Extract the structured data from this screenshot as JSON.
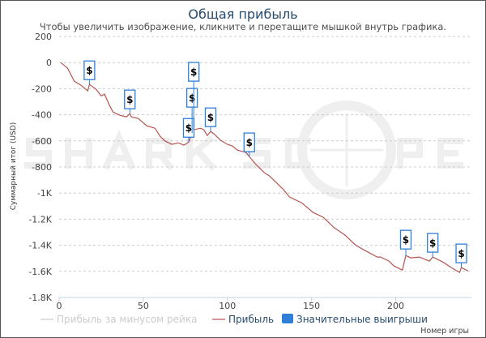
{
  "chart_data": {
    "type": "line",
    "title": "Общая прибыль",
    "subtitle": "Чтобы увеличить изображение, кликните и перетащите мышкой внутрь графика.",
    "xlabel": "Номер игры",
    "ylabel": "Суммарный итог (USD)",
    "xlim": [
      0,
      245
    ],
    "ylim": [
      -1800,
      200
    ],
    "grid": true,
    "x_ticks": [
      {
        "v": 0,
        "label": "0"
      },
      {
        "v": 50,
        "label": "50"
      },
      {
        "v": 100,
        "label": "100"
      },
      {
        "v": 150,
        "label": "150"
      },
      {
        "v": 200,
        "label": "200"
      }
    ],
    "y_ticks": [
      {
        "v": 200,
        "label": "200"
      },
      {
        "v": 0,
        "label": "0"
      },
      {
        "v": -200,
        "label": "-200"
      },
      {
        "v": -400,
        "label": "-400"
      },
      {
        "v": -600,
        "label": "-600"
      },
      {
        "v": -800,
        "label": "-800"
      },
      {
        "v": -1000,
        "label": "-1K"
      },
      {
        "v": -1200,
        "label": "-1.2K"
      },
      {
        "v": -1400,
        "label": "-1.4K"
      },
      {
        "v": -1600,
        "label": "-1.6K"
      },
      {
        "v": -1800,
        "label": "-1.8K"
      }
    ],
    "legend": [
      {
        "name": "Прибыль за минусом рейка",
        "color": "#cccccc",
        "active": false
      },
      {
        "name": "Прибыль",
        "color": "#b85450",
        "active": true
      },
      {
        "name": "Значительные выигрыши",
        "color": "#2f7ed8",
        "active": true
      }
    ],
    "legend_position": "bottom",
    "series": [
      {
        "name": "Прибыль",
        "color": "#b85450",
        "points": [
          [
            1,
            0
          ],
          [
            5,
            -43
          ],
          [
            9,
            -143
          ],
          [
            13,
            -174
          ],
          [
            17,
            -217
          ],
          [
            18,
            -168
          ],
          [
            22,
            -205
          ],
          [
            25,
            -255
          ],
          [
            27,
            -242
          ],
          [
            30,
            -329
          ],
          [
            32,
            -379
          ],
          [
            36,
            -404
          ],
          [
            40,
            -416
          ],
          [
            42,
            -391
          ],
          [
            43,
            -416
          ],
          [
            47,
            -428
          ],
          [
            52,
            -484
          ],
          [
            57,
            -503
          ],
          [
            60,
            -565
          ],
          [
            63,
            -602
          ],
          [
            67,
            -627
          ],
          [
            71,
            -615
          ],
          [
            74,
            -633
          ],
          [
            75,
            -627
          ],
          [
            77,
            -609
          ],
          [
            80,
            -515
          ],
          [
            84,
            -503
          ],
          [
            86,
            -515
          ],
          [
            88,
            -559
          ],
          [
            90,
            -528
          ],
          [
            92,
            -546
          ],
          [
            96,
            -596
          ],
          [
            100,
            -627
          ],
          [
            103,
            -640
          ],
          [
            106,
            -671
          ],
          [
            111,
            -689
          ],
          [
            113,
            -720
          ],
          [
            117,
            -782
          ],
          [
            122,
            -845
          ],
          [
            125,
            -869
          ],
          [
            133,
            -969
          ],
          [
            137,
            -1031
          ],
          [
            144,
            -1074
          ],
          [
            151,
            -1149
          ],
          [
            157,
            -1186
          ],
          [
            163,
            -1261
          ],
          [
            170,
            -1323
          ],
          [
            176,
            -1397
          ],
          [
            181,
            -1435
          ],
          [
            189,
            -1490
          ],
          [
            191,
            -1490
          ],
          [
            196,
            -1521
          ],
          [
            199,
            -1559
          ],
          [
            204,
            -1590
          ],
          [
            206,
            -1478
          ],
          [
            209,
            -1497
          ],
          [
            214,
            -1490
          ],
          [
            220,
            -1521
          ],
          [
            222,
            -1490
          ],
          [
            228,
            -1528
          ],
          [
            233,
            -1571
          ],
          [
            238,
            -1608
          ],
          [
            239,
            -1571
          ],
          [
            243,
            -1596
          ]
        ]
      }
    ],
    "significant_wins": {
      "symbol": "$",
      "points": [
        [
          18,
          -168
        ],
        [
          42,
          -391
        ],
        [
          77,
          -609
        ],
        [
          79,
          -540
        ],
        [
          80,
          -515
        ],
        [
          90,
          -528
        ],
        [
          113,
          -720
        ],
        [
          206,
          -1478
        ],
        [
          222,
          -1490
        ],
        [
          239,
          -1571
        ]
      ]
    }
  },
  "watermark": "SHARKSCOPE"
}
